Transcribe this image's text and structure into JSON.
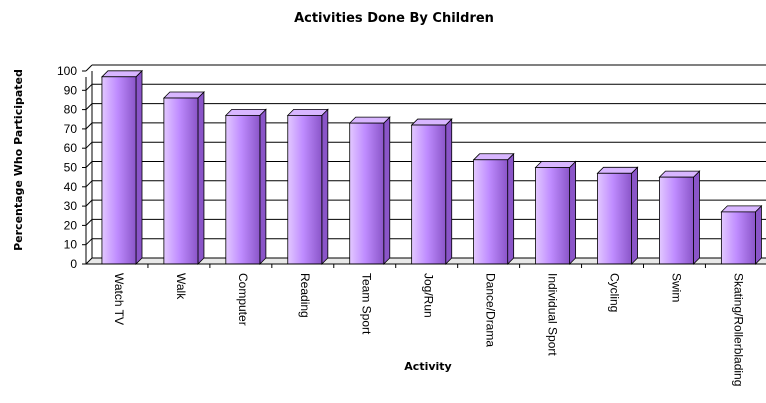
{
  "chart_data": {
    "type": "bar",
    "title": "Activities Done By Children",
    "xlabel": "Activity",
    "ylabel": "Percentage Who Participated",
    "ylim": [
      0,
      100
    ],
    "yticks": [
      0,
      10,
      20,
      30,
      40,
      50,
      60,
      70,
      80,
      90,
      100
    ],
    "grid": true,
    "legend": "none",
    "categories": [
      "Watch TV",
      "Walk",
      "Computer",
      "Reading",
      "Team Sport",
      "Jog/Run",
      "Dance/Drama",
      "Individual Sport",
      "Cycling",
      "Swim",
      "Skating/Rollerblading"
    ],
    "values": [
      97,
      86,
      77,
      77,
      73,
      72,
      54,
      50,
      47,
      45,
      27
    ],
    "colors": {
      "bar_light": "#e2c8ff",
      "bar_mid": "#bf8cff",
      "bar_dark": "#8a55c8",
      "bar_top": "#d8b6ff",
      "plot_bg": "#ffffff",
      "grid": "#000000"
    }
  }
}
